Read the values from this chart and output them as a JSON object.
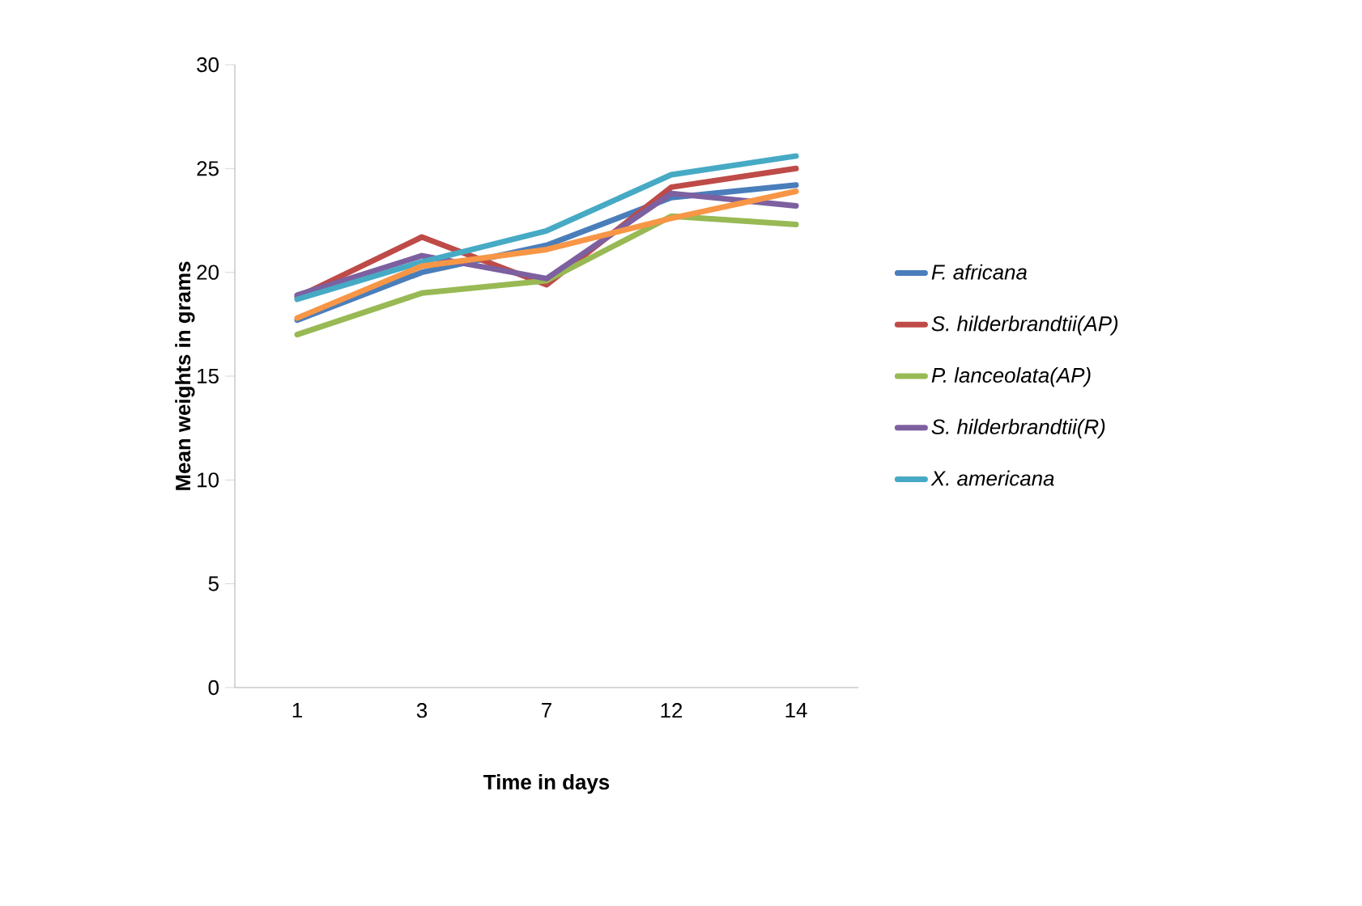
{
  "chart_data": {
    "type": "line",
    "xlabel": "Time in days",
    "ylabel": "Mean weights in grams",
    "categories": [
      "1",
      "3",
      "7",
      "12",
      "14"
    ],
    "series": [
      {
        "name": "*F. africana*",
        "color": "#4a7ebb",
        "values": [
          17.7,
          20.0,
          21.3,
          23.6,
          24.2
        ]
      },
      {
        "name": "*S. hilderbrandtii(AP)*",
        "color": "#be4b48",
        "values": [
          18.8,
          21.7,
          19.4,
          24.1,
          25.0
        ]
      },
      {
        "name": "*P. lanceolata(AP)*",
        "color": "#98b954",
        "values": [
          17.0,
          19.0,
          19.6,
          22.7,
          22.3
        ]
      },
      {
        "name": "*S. hilderbrandtii(R)*",
        "color": "#7d60a0",
        "values": [
          18.9,
          20.8,
          19.7,
          23.8,
          23.2
        ]
      },
      {
        "name": "*X. americana*",
        "color": "#46aac5",
        "values": [
          18.7,
          20.5,
          22.0,
          24.7,
          25.6
        ]
      },
      {
        "color": "#f79646",
        "values": [
          17.8,
          20.3,
          21.1,
          22.6,
          23.9
        ]
      }
    ],
    "ylim": [
      0,
      30
    ],
    "yticks": [
      0,
      5,
      10,
      15,
      20,
      25,
      30
    ],
    "grid": false,
    "legend": "right",
    "marker": "none",
    "line_style": "solid"
  }
}
